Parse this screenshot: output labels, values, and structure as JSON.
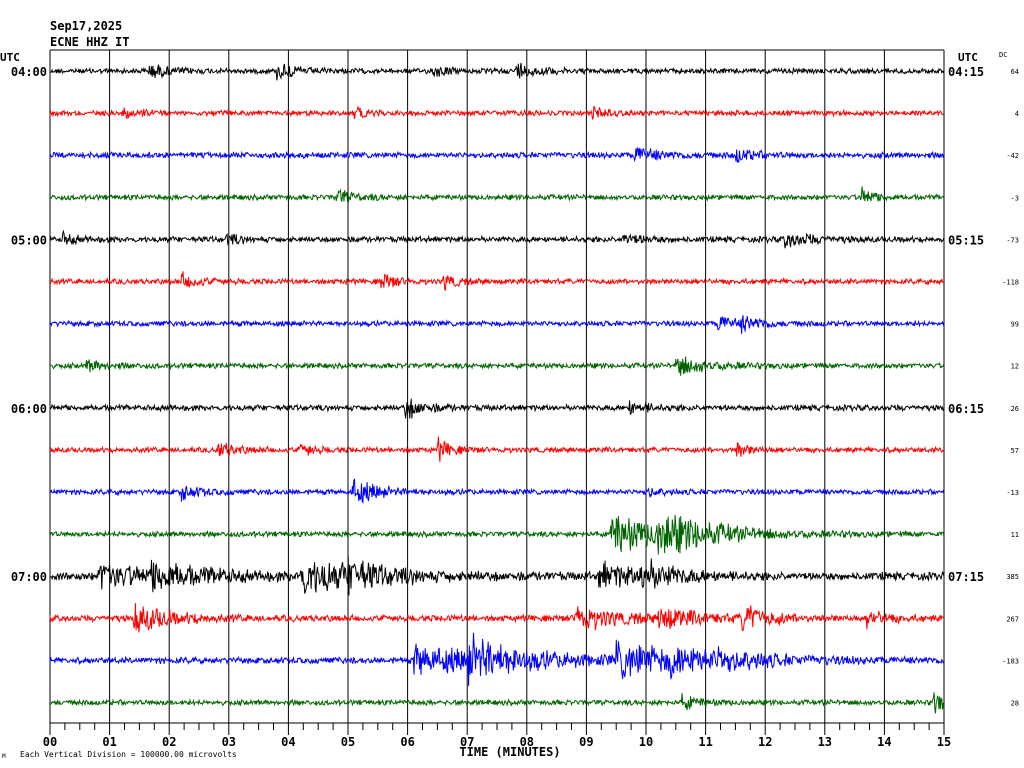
{
  "header": {
    "date": "Sep17,2025",
    "station": "ECNE HHZ IT"
  },
  "labels": {
    "utc_left": "UTC",
    "utc_right": "UTC",
    "dc": "DC",
    "xlabel": "TIME (MINUTES)",
    "footer": "Each Vertical Division = 100000.00 microvolts",
    "footer_mark": "M"
  },
  "colors": {
    "trace_cycle": [
      "#000000",
      "#ff0000",
      "#0000ff",
      "#006400"
    ],
    "grid": "#000000",
    "background": "#ffffff"
  },
  "chart_data": {
    "type": "line",
    "description_units": "helicorder; x in minutes within each 15-minute row",
    "x_ticks": [
      "00",
      "01",
      "02",
      "03",
      "04",
      "05",
      "06",
      "07",
      "08",
      "09",
      "10",
      "11",
      "12",
      "13",
      "14",
      "15"
    ],
    "xlim": [
      0,
      15
    ],
    "left_time_labels": [
      {
        "row": 0,
        "text": "04:00"
      },
      {
        "row": 4,
        "text": "05:00"
      },
      {
        "row": 8,
        "text": "06:00"
      },
      {
        "row": 12,
        "text": "07:00"
      }
    ],
    "right_time_labels": [
      {
        "row": 0,
        "text": "04:15"
      },
      {
        "row": 4,
        "text": "05:15"
      },
      {
        "row": 8,
        "text": "06:15"
      },
      {
        "row": 12,
        "text": "07:15"
      }
    ],
    "dc_values": [
      "64",
      "4",
      "-42",
      "-3",
      "-73",
      "-118",
      "99",
      "12",
      "26",
      "57",
      "-13",
      "11",
      "385",
      "267",
      "-183",
      "28"
    ],
    "rows": [
      {
        "noise": 1.0,
        "events": [
          {
            "t": 1.65,
            "a": 2.0,
            "d": 0.3
          },
          {
            "t": 3.8,
            "a": 2.2,
            "d": 0.3
          },
          {
            "t": 6.4,
            "a": 1.8,
            "d": 0.2
          },
          {
            "t": 7.8,
            "a": 2.5,
            "d": 0.3
          }
        ]
      },
      {
        "noise": 1.0,
        "events": [
          {
            "t": 1.2,
            "a": 1.5,
            "d": 0.3
          },
          {
            "t": 5.1,
            "a": 1.4,
            "d": 0.2
          },
          {
            "t": 9.1,
            "a": 1.5,
            "d": 0.2
          }
        ]
      },
      {
        "noise": 1.1,
        "events": [
          {
            "t": 9.8,
            "a": 2.2,
            "d": 0.4
          },
          {
            "t": 11.5,
            "a": 1.8,
            "d": 0.3
          }
        ]
      },
      {
        "noise": 1.0,
        "events": [
          {
            "t": 4.8,
            "a": 2.0,
            "d": 0.3
          },
          {
            "t": 13.6,
            "a": 2.6,
            "d": 0.2
          }
        ]
      },
      {
        "noise": 1.1,
        "events": [
          {
            "t": 0.2,
            "a": 1.8,
            "d": 0.2
          },
          {
            "t": 2.95,
            "a": 1.6,
            "d": 0.2
          },
          {
            "t": 9.6,
            "a": 1.6,
            "d": 0.3
          },
          {
            "t": 12.3,
            "a": 2.3,
            "d": 0.4
          }
        ]
      },
      {
        "noise": 1.0,
        "events": [
          {
            "t": 2.2,
            "a": 2.0,
            "d": 0.3
          },
          {
            "t": 5.55,
            "a": 2.4,
            "d": 0.2
          },
          {
            "t": 6.6,
            "a": 2.2,
            "d": 0.2
          }
        ]
      },
      {
        "noise": 1.0,
        "events": [
          {
            "t": 11.2,
            "a": 2.2,
            "d": 0.3
          },
          {
            "t": 11.6,
            "a": 2.0,
            "d": 0.3
          }
        ]
      },
      {
        "noise": 1.0,
        "events": [
          {
            "t": 0.6,
            "a": 1.6,
            "d": 0.3
          },
          {
            "t": 10.5,
            "a": 2.8,
            "d": 0.5
          }
        ]
      },
      {
        "noise": 1.1,
        "events": [
          {
            "t": 5.95,
            "a": 3.0,
            "d": 0.3
          },
          {
            "t": 9.7,
            "a": 1.8,
            "d": 0.3
          }
        ]
      },
      {
        "noise": 1.0,
        "events": [
          {
            "t": 2.8,
            "a": 2.0,
            "d": 0.3
          },
          {
            "t": 4.2,
            "a": 1.8,
            "d": 0.2
          },
          {
            "t": 6.5,
            "a": 3.0,
            "d": 0.2
          },
          {
            "t": 11.5,
            "a": 2.2,
            "d": 0.2
          }
        ]
      },
      {
        "noise": 1.0,
        "events": [
          {
            "t": 2.2,
            "a": 2.0,
            "d": 0.3
          },
          {
            "t": 5.05,
            "a": 3.8,
            "d": 0.4
          },
          {
            "t": 10.0,
            "a": 1.6,
            "d": 0.2
          }
        ]
      },
      {
        "noise": 1.0,
        "events": [
          {
            "t": 9.4,
            "a": 5.5,
            "d": 1.0
          },
          {
            "t": 10.2,
            "a": 4.2,
            "d": 0.9
          }
        ]
      },
      {
        "noise": 1.5,
        "events": [
          {
            "t": 0.8,
            "a": 3.5,
            "d": 0.9
          },
          {
            "t": 1.7,
            "a": 3.0,
            "d": 0.9
          },
          {
            "t": 4.2,
            "a": 4.5,
            "d": 1.2
          },
          {
            "t": 5.0,
            "a": 3.0,
            "d": 0.4
          },
          {
            "t": 9.2,
            "a": 3.5,
            "d": 0.7
          },
          {
            "t": 9.9,
            "a": 3.5,
            "d": 0.5
          }
        ]
      },
      {
        "noise": 1.2,
        "events": [
          {
            "t": 1.4,
            "a": 4.0,
            "d": 0.6
          },
          {
            "t": 8.8,
            "a": 3.5,
            "d": 0.7
          },
          {
            "t": 10.2,
            "a": 3.0,
            "d": 0.6
          },
          {
            "t": 11.6,
            "a": 3.6,
            "d": 0.4
          },
          {
            "t": 13.7,
            "a": 2.2,
            "d": 0.3
          }
        ]
      },
      {
        "noise": 1.2,
        "events": [
          {
            "t": 6.1,
            "a": 4.0,
            "d": 1.4
          },
          {
            "t": 7.0,
            "a": 4.5,
            "d": 0.9
          },
          {
            "t": 9.5,
            "a": 4.3,
            "d": 1.4
          },
          {
            "t": 10.4,
            "a": 2.5,
            "d": 0.6
          },
          {
            "t": 11.2,
            "a": 2.0,
            "d": 0.5
          }
        ]
      },
      {
        "noise": 1.0,
        "events": [
          {
            "t": 10.6,
            "a": 1.8,
            "d": 0.3
          },
          {
            "t": 14.8,
            "a": 2.6,
            "d": 0.5
          }
        ]
      }
    ]
  }
}
